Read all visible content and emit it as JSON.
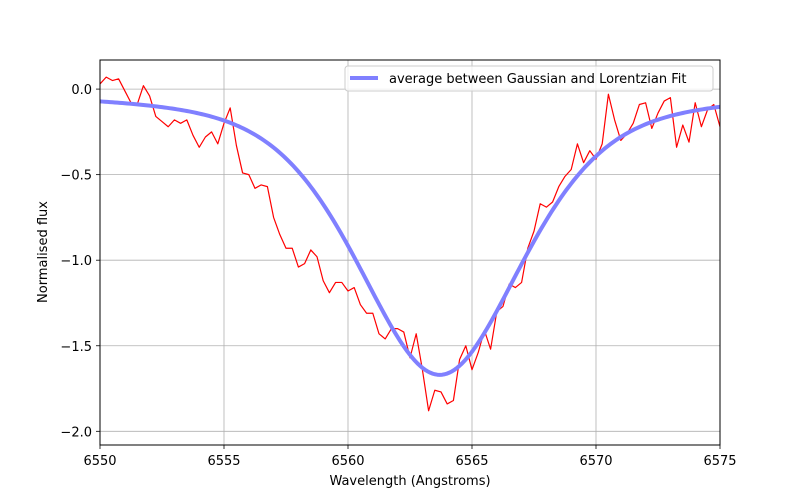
{
  "chart_data": {
    "type": "line",
    "xlabel": "Wavelength (Angstroms)",
    "ylabel": "Normalised flux",
    "xlim": [
      6550,
      6575
    ],
    "ylim": [
      -2.08,
      0.17
    ],
    "xticks": [
      6550,
      6555,
      6560,
      6565,
      6570,
      6575
    ],
    "xtick_labels": [
      "6550",
      "6555",
      "6560",
      "6565",
      "6570",
      "6575"
    ],
    "yticks": [
      0.0,
      -0.5,
      -1.0,
      -1.5,
      -2.0
    ],
    "ytick_labels": [
      "0.0",
      "−0.5",
      "−1.0",
      "−1.5",
      "−2.0"
    ],
    "grid": true,
    "legend_position": "upper right",
    "colors": {
      "observed": "#ff0000",
      "fit": "#8080ff"
    },
    "series": [
      {
        "key": "observed",
        "values_x": [
          6550.0,
          6550.25,
          6550.5,
          6550.75,
          6551.0,
          6551.25,
          6551.5,
          6551.75,
          6552.0,
          6552.25,
          6552.5,
          6552.75,
          6553.0,
          6553.25,
          6553.5,
          6553.75,
          6554.0,
          6554.25,
          6554.5,
          6554.75,
          6555.0,
          6555.25,
          6555.5,
          6555.75,
          6556.0,
          6556.25,
          6556.5,
          6556.75,
          6557.0,
          6557.25,
          6557.5,
          6557.75,
          6558.0,
          6558.25,
          6558.5,
          6558.75,
          6559.0,
          6559.25,
          6559.5,
          6559.75,
          6560.0,
          6560.25,
          6560.5,
          6560.75,
          6561.0,
          6561.25,
          6561.5,
          6561.75,
          6562.0,
          6562.25,
          6562.5,
          6562.75,
          6563.0,
          6563.25,
          6563.5,
          6563.75,
          6564.0,
          6564.25,
          6564.5,
          6564.75,
          6565.0,
          6565.25,
          6565.5,
          6565.75,
          6566.0,
          6566.25,
          6566.5,
          6566.75,
          6567.0,
          6567.25,
          6567.5,
          6567.75,
          6568.0,
          6568.25,
          6568.5,
          6568.75,
          6569.0,
          6569.25,
          6569.5,
          6569.75,
          6570.0,
          6570.25,
          6570.5,
          6570.75,
          6571.0,
          6571.25,
          6571.5,
          6571.75,
          6572.0,
          6572.25,
          6572.5,
          6572.75,
          6573.0,
          6573.25,
          6573.5,
          6573.75,
          6574.0,
          6574.25,
          6574.5,
          6574.75,
          6575.0
        ],
        "values_y": [
          0.03,
          0.07,
          0.05,
          0.06,
          -0.01,
          -0.08,
          -0.09,
          0.02,
          -0.04,
          -0.16,
          -0.19,
          -0.22,
          -0.18,
          -0.2,
          -0.18,
          -0.27,
          -0.34,
          -0.28,
          -0.25,
          -0.32,
          -0.2,
          -0.11,
          -0.33,
          -0.49,
          -0.5,
          -0.58,
          -0.56,
          -0.57,
          -0.75,
          -0.85,
          -0.93,
          -0.93,
          -1.04,
          -1.02,
          -0.94,
          -0.98,
          -1.12,
          -1.19,
          -1.13,
          -1.13,
          -1.18,
          -1.16,
          -1.26,
          -1.31,
          -1.31,
          -1.43,
          -1.46,
          -1.4,
          -1.4,
          -1.42,
          -1.57,
          -1.43,
          -1.64,
          -1.88,
          -1.76,
          -1.77,
          -1.84,
          -1.82,
          -1.58,
          -1.5,
          -1.64,
          -1.54,
          -1.41,
          -1.52,
          -1.3,
          -1.27,
          -1.14,
          -1.16,
          -1.13,
          -0.93,
          -0.83,
          -0.67,
          -0.69,
          -0.66,
          -0.57,
          -0.51,
          -0.47,
          -0.32,
          -0.43,
          -0.36,
          -0.41,
          -0.32,
          -0.03,
          -0.18,
          -0.3,
          -0.26,
          -0.2,
          -0.09,
          -0.08,
          -0.23,
          -0.14,
          -0.07,
          -0.05,
          -0.34,
          -0.21,
          -0.31,
          -0.08,
          -0.22,
          -0.12,
          -0.09,
          -0.22
        ]
      },
      {
        "key": "fit",
        "name": "average between Gaussian and Lorentzian Fit",
        "model": {
          "center": 6563.7,
          "depth": 1.67,
          "sigma": 3.3,
          "gamma": 4.2
        },
        "x_range": [
          6550,
          6575
        ]
      }
    ]
  }
}
